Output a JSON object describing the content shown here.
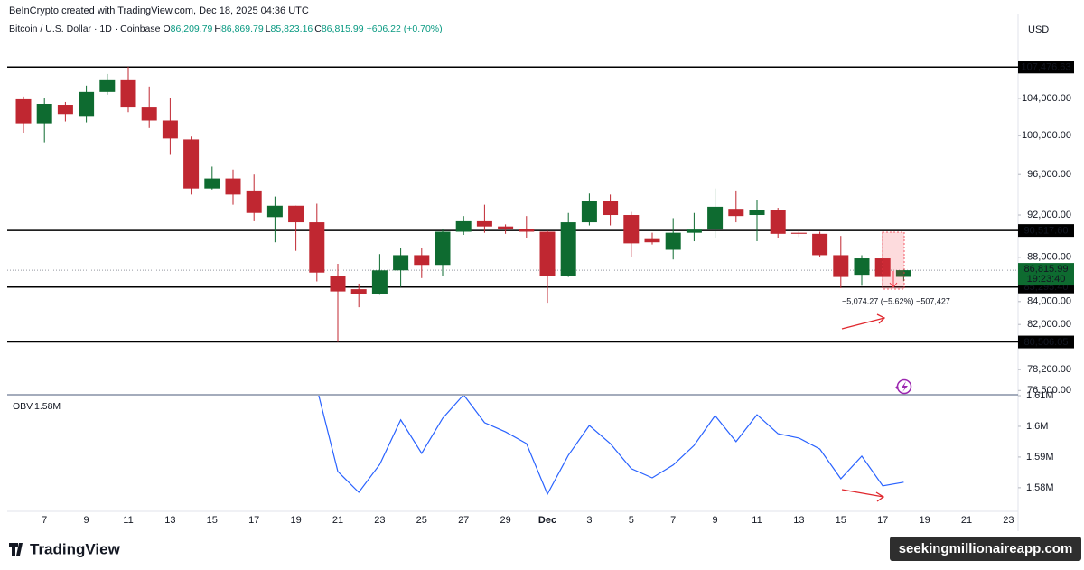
{
  "header": {
    "credit": "BeInCrypto created with TradingView.com, Dec 18, 2025 04:36 UTC",
    "symbol": "Bitcoin / U.S. Dollar · 1D · Coinbase",
    "ohlc": [
      {
        "key": "O",
        "value": "86,209.79"
      },
      {
        "key": "H",
        "value": "86,869.79"
      },
      {
        "key": "L",
        "value": "85,823.16"
      },
      {
        "key": "C",
        "value": "86,815.99"
      }
    ],
    "change": "+606.22 (+0.70%)",
    "currency": "USD"
  },
  "chart_data": [
    {
      "type": "candlestick",
      "categories": [
        null,
        "7",
        null,
        "9",
        null,
        "11",
        null,
        "13",
        null,
        "15",
        null,
        "17",
        null,
        "19",
        null,
        "21",
        null,
        "23",
        null,
        "25",
        null,
        "27",
        null,
        "29",
        null,
        "Dec",
        null,
        "3",
        null,
        "5",
        null,
        "7",
        null,
        "9",
        null,
        "11",
        null,
        "13",
        null,
        "15",
        null,
        "17",
        null,
        "19",
        null,
        "21",
        null,
        "23"
      ],
      "open": [
        103900,
        101300,
        103300,
        102100,
        104700,
        106000,
        103000,
        101600,
        99600,
        94600,
        95600,
        94400,
        91800,
        92900,
        91300,
        86300,
        85100,
        84700,
        86800,
        88200,
        87300,
        90400,
        91400,
        90900,
        90700,
        90400,
        86300,
        91300,
        93400,
        92000,
        89700,
        88700,
        90300,
        90600,
        92600,
        92000,
        92500,
        90300,
        90200,
        88200,
        86400,
        87900,
        86209.79,
        null,
        null,
        null,
        null,
        null
      ],
      "high": [
        104200,
        104000,
        103600,
        105400,
        106700,
        107500,
        105300,
        104000,
        99900,
        96800,
        96500,
        96000,
        93800,
        92900,
        93100,
        87400,
        85600,
        88300,
        88900,
        88900,
        90700,
        91900,
        93000,
        91100,
        91900,
        90500,
        92200,
        94100,
        94000,
        92300,
        90300,
        91700,
        92200,
        94600,
        94400,
        93500,
        92700,
        90600,
        90400,
        90000,
        88200,
        90400,
        86869.79,
        null,
        null,
        null,
        null,
        null
      ],
      "low": [
        100300,
        99300,
        101500,
        101400,
        104400,
        102500,
        100800,
        98000,
        94000,
        94500,
        93000,
        91400,
        89400,
        88600,
        85800,
        80500,
        83500,
        84600,
        85300,
        86100,
        86300,
        90100,
        90300,
        90200,
        89800,
        83900,
        86200,
        91000,
        91000,
        88000,
        89200,
        87800,
        89500,
        89800,
        91300,
        89500,
        89800,
        89900,
        88000,
        85200,
        85400,
        85300,
        85823.16,
        null,
        null,
        null,
        null,
        null
      ],
      "close": [
        101300,
        103400,
        102300,
        104700,
        106000,
        103000,
        101600,
        99700,
        94600,
        95600,
        94000,
        92200,
        92900,
        91300,
        86600,
        84900,
        84700,
        86800,
        88200,
        87300,
        90400,
        91400,
        90900,
        90700,
        90400,
        86300,
        91300,
        93400,
        92000,
        89300,
        89400,
        90300,
        90600,
        92800,
        91900,
        92500,
        90200,
        90200,
        88200,
        86200,
        87900,
        86200,
        86815.99,
        null,
        null,
        null,
        null,
        null
      ],
      "up_color": "#0e6b30",
      "down_color": "#c02731",
      "log_scale": true,
      "grid": false,
      "ylim": [
        76160,
        113700
      ],
      "yticks": [
        {
          "value": 104000,
          "label": "104,000.00"
        },
        {
          "value": 100000,
          "label": "100,000.00"
        },
        {
          "value": 96000,
          "label": "96,000.00"
        },
        {
          "value": 92000,
          "label": "92,000.00"
        },
        {
          "value": 88000,
          "label": "88,000.00"
        },
        {
          "value": 84000,
          "label": "84,000.00"
        },
        {
          "value": 82000,
          "label": "82,000.00"
        },
        {
          "value": 78200,
          "label": "78,200.00"
        },
        {
          "value": 76500,
          "label": "76,500.00"
        }
      ],
      "levels": [
        {
          "value": 107476.63,
          "label": "107,476.63"
        },
        {
          "value": 90517.6,
          "label": "90,517.60"
        },
        {
          "value": 85295.4,
          "label": "85,295.40"
        },
        {
          "value": 80506.05,
          "label": "80,506.05"
        }
      ],
      "last_price": {
        "value": 86815.99,
        "label": "86,815.99",
        "countdown": "19:23:40",
        "color": "#0e6b30"
      },
      "annotations": [
        {
          "text": "−5,074.27 (−5.62%) −507,427"
        }
      ]
    },
    {
      "type": "line",
      "series": [
        {
          "name": "OBV",
          "color": "#2962ff",
          "values": [
            null,
            null,
            null,
            null,
            null,
            null,
            null,
            null,
            null,
            null,
            null,
            null,
            null,
            null,
            1612500,
            1585300,
            1578500,
            1587600,
            1602100,
            1591200,
            1602600,
            1610300,
            1601200,
            1598200,
            1594400,
            1577900,
            1590600,
            1600300,
            1594400,
            1586200,
            1583200,
            1587400,
            1593800,
            1603500,
            1595000,
            1603800,
            1597600,
            1596200,
            1592600,
            1582900,
            1590300,
            1580600,
            1581800,
            null,
            null,
            null,
            null,
            null
          ]
        }
      ],
      "current": {
        "value": 1581800,
        "label": "1.58M"
      },
      "ylim": [
        1572600,
        1610300
      ],
      "yticks": [
        {
          "value": 1610000,
          "label": "1.61M"
        },
        {
          "value": 1600000,
          "label": "1.6M"
        },
        {
          "value": 1590000,
          "label": "1.59M"
        },
        {
          "value": 1580000,
          "label": "1.58M"
        }
      ]
    }
  ],
  "footer": {
    "logo": "TradingView",
    "watermark": "seekingmillionaireapp.com"
  }
}
